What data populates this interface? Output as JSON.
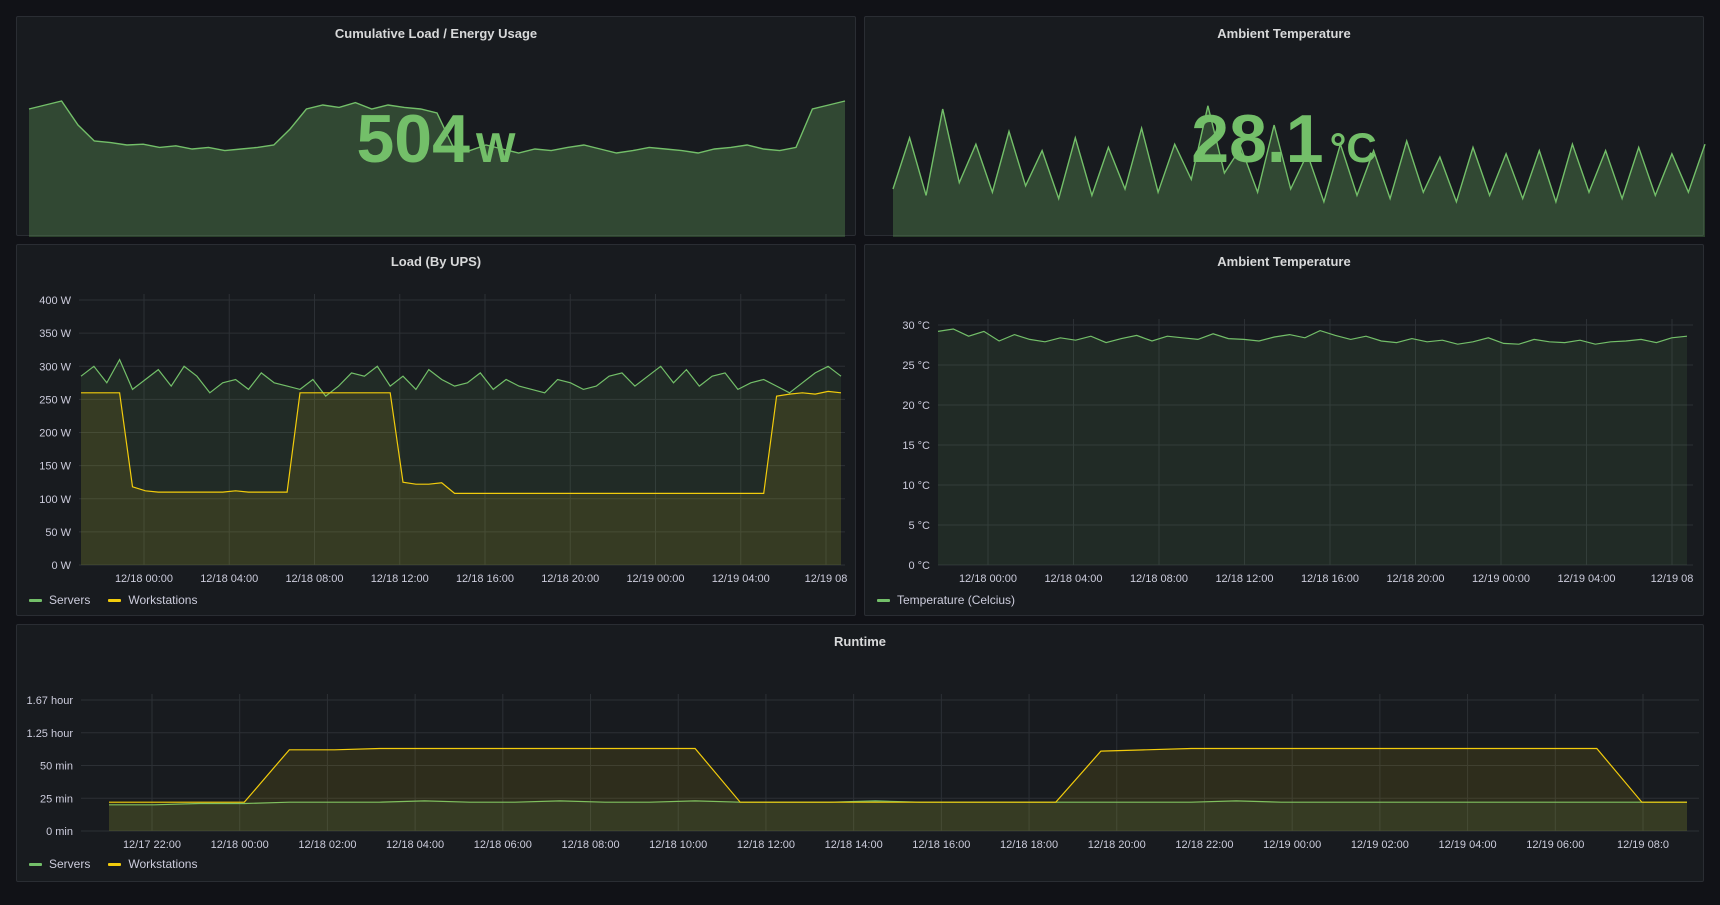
{
  "colors": {
    "background": "#111217",
    "panel": "#181b1f",
    "green": "#73bf69",
    "yellow": "#f2cc0c",
    "grid": "#2c3035",
    "axis_text": "#ccccdc"
  },
  "stat_load": {
    "title": "Cumulative Load / Energy Usage",
    "value": "504",
    "unit": "W"
  },
  "stat_temp": {
    "title": "Ambient Temperature",
    "value": "28.1",
    "unit": "°C"
  },
  "load_panel": {
    "title": "Load (By UPS)",
    "legend": [
      "Servers",
      "Workstations"
    ]
  },
  "temp_panel": {
    "title": "Ambient Temperature",
    "legend": [
      "Temperature (Celcius)"
    ]
  },
  "runtime_panel": {
    "title": "Runtime",
    "legend": [
      "Servers",
      "Workstations"
    ]
  },
  "chart_data": [
    {
      "id": "load_by_ups",
      "type": "line",
      "title": "Load (By UPS)",
      "x_ticks": [
        "12/18 00:00",
        "12/18 04:00",
        "12/18 08:00",
        "12/18 12:00",
        "12/18 16:00",
        "12/18 20:00",
        "12/19 00:00",
        "12/19 04:00",
        "12/19 08"
      ],
      "y_ticks": [
        "0 W",
        "50 W",
        "100 W",
        "150 W",
        "200 W",
        "250 W",
        "300 W",
        "350 W",
        "400 W"
      ],
      "ylim": [
        0,
        400
      ],
      "grid": true,
      "legend_position": "bottom-left",
      "series": [
        {
          "name": "Servers",
          "color": "#73bf69",
          "values": [
            285,
            300,
            275,
            310,
            265,
            280,
            295,
            270,
            300,
            285,
            260,
            275,
            280,
            265,
            290,
            275,
            270,
            265,
            280,
            255,
            270,
            290,
            285,
            300,
            270,
            285,
            265,
            295,
            280,
            270,
            275,
            290,
            265,
            280,
            270,
            265,
            260,
            280,
            275,
            265,
            270,
            285,
            290,
            270,
            285,
            300,
            275,
            295,
            270,
            285,
            290,
            265,
            275,
            280,
            270,
            260,
            275,
            290,
            300,
            285
          ]
        },
        {
          "name": "Workstations",
          "color": "#f2cc0c",
          "values": [
            260,
            260,
            260,
            260,
            118,
            112,
            110,
            110,
            110,
            110,
            110,
            110,
            112,
            110,
            110,
            110,
            110,
            260,
            260,
            260,
            260,
            260,
            260,
            260,
            260,
            125,
            122,
            122,
            124,
            108,
            108,
            108,
            108,
            108,
            108,
            108,
            108,
            108,
            108,
            108,
            108,
            108,
            108,
            108,
            108,
            108,
            108,
            108,
            108,
            108,
            108,
            108,
            108,
            108,
            255,
            258,
            260,
            258,
            262,
            260
          ]
        }
      ]
    },
    {
      "id": "ambient_temperature",
      "type": "line",
      "title": "Ambient Temperature",
      "x_ticks": [
        "12/18 00:00",
        "12/18 04:00",
        "12/18 08:00",
        "12/18 12:00",
        "12/18 16:00",
        "12/18 20:00",
        "12/19 00:00",
        "12/19 04:00",
        "12/19 08"
      ],
      "y_ticks": [
        "0 °C",
        "5 °C",
        "10 °C",
        "15 °C",
        "20 °C",
        "25 °C",
        "30 °C"
      ],
      "ylim": [
        0,
        30
      ],
      "grid": true,
      "legend_position": "bottom-left",
      "series": [
        {
          "name": "Temperature (Celcius)",
          "color": "#73bf69",
          "values": [
            29.2,
            29.5,
            28.6,
            29.2,
            28.0,
            28.8,
            28.2,
            27.9,
            28.4,
            28.1,
            28.6,
            27.8,
            28.3,
            28.7,
            28.0,
            28.6,
            28.4,
            28.2,
            28.9,
            28.3,
            28.2,
            28.0,
            28.5,
            28.8,
            28.4,
            29.3,
            28.7,
            28.2,
            28.6,
            28.0,
            27.8,
            28.3,
            27.9,
            28.1,
            27.6,
            27.9,
            28.4,
            27.7,
            27.6,
            28.2,
            27.9,
            27.8,
            28.1,
            27.6,
            27.9,
            28.0,
            28.2,
            27.8,
            28.4,
            28.6
          ]
        }
      ]
    },
    {
      "id": "runtime",
      "type": "line",
      "title": "Runtime",
      "x_ticks": [
        "12/17 22:00",
        "12/18 00:00",
        "12/18 02:00",
        "12/18 04:00",
        "12/18 06:00",
        "12/18 08:00",
        "12/18 10:00",
        "12/18 12:00",
        "12/18 14:00",
        "12/18 16:00",
        "12/18 18:00",
        "12/18 20:00",
        "12/18 22:00",
        "12/19 00:00",
        "12/19 02:00",
        "12/19 04:00",
        "12/19 06:00",
        "12/19 08:0"
      ],
      "y_ticks": [
        "0 min",
        "25 min",
        "50 min",
        "1.25 hour",
        "1.67 hour"
      ],
      "ylim": [
        0,
        100
      ],
      "grid": true,
      "legend_position": "bottom-left",
      "series": [
        {
          "name": "Servers",
          "color": "#73bf69",
          "values": [
            20,
            20,
            21,
            21,
            22,
            22,
            22,
            23,
            22,
            22,
            23,
            22,
            22,
            23,
            22,
            22,
            22,
            23,
            22,
            22,
            22,
            22,
            22,
            22,
            22,
            23,
            22,
            22,
            22,
            22,
            22,
            22,
            22,
            22,
            22,
            22
          ]
        },
        {
          "name": "Workstations",
          "color": "#f2cc0c",
          "values": [
            22,
            22,
            22,
            22,
            62,
            62,
            63,
            63,
            63,
            63,
            63,
            63,
            63,
            63,
            22,
            22,
            22,
            22,
            22,
            22,
            22,
            22,
            61,
            62,
            63,
            63,
            63,
            63,
            63,
            63,
            63,
            63,
            63,
            63,
            22,
            22
          ]
        }
      ]
    },
    {
      "id": "load_sparkline",
      "type": "area",
      "title": "Cumulative Load / Energy Usage",
      "series": [
        {
          "name": "",
          "color": "#73bf69",
          "values": [
            560,
            565,
            570,
            540,
            520,
            518,
            515,
            516,
            512,
            514,
            510,
            512,
            508,
            510,
            512,
            515,
            535,
            560,
            565,
            562,
            568,
            560,
            565,
            562,
            560,
            555,
            512,
            508,
            515,
            510,
            505,
            510,
            508,
            512,
            515,
            510,
            505,
            508,
            512,
            510,
            508,
            505,
            510,
            512,
            515,
            510,
            508,
            512,
            560,
            565,
            570
          ]
        }
      ],
      "ylim": [
        400,
        600
      ]
    },
    {
      "id": "temp_sparkline",
      "type": "area",
      "title": "Ambient Temperature",
      "series": [
        {
          "name": "",
          "color": "#73bf69",
          "values": [
            27.0,
            28.6,
            26.8,
            29.5,
            27.2,
            28.4,
            26.9,
            28.8,
            27.1,
            28.2,
            26.7,
            28.6,
            26.8,
            28.3,
            27.0,
            28.9,
            26.9,
            28.4,
            27.3,
            29.6,
            27.5,
            28.3,
            26.9,
            29.0,
            27.0,
            28.1,
            26.6,
            28.4,
            26.8,
            28.2,
            26.7,
            28.5,
            26.9,
            28.0,
            26.6,
            28.3,
            26.8,
            28.1,
            26.7,
            28.2,
            26.6,
            28.4,
            26.9,
            28.2,
            26.7,
            28.3,
            26.8,
            28.1,
            26.9,
            28.4
          ]
        }
      ],
      "ylim": [
        25.5,
        30.5
      ]
    }
  ]
}
